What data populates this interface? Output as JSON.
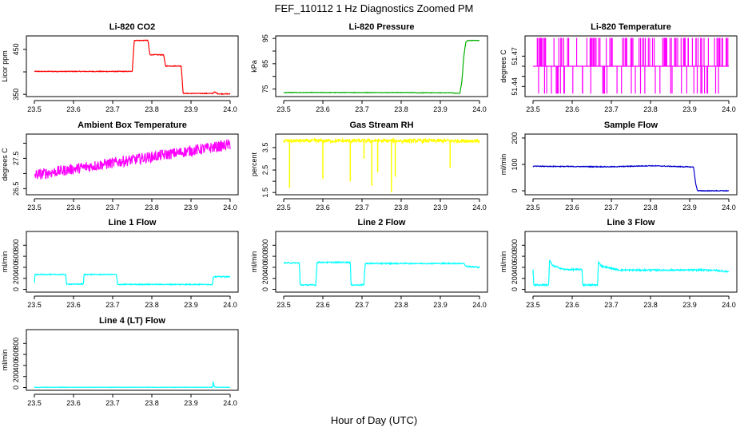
{
  "figure": {
    "title": "FEF_110112  1 Hz Diagnostics Zoomed PM",
    "xlabel": "Hour of Day (UTC)"
  },
  "chart_data": [
    {
      "type": "line",
      "title": "Li-820 CO2",
      "ylabel": "Licor ppm",
      "xlim": [
        23.5,
        24.0
      ],
      "xticks": [
        "23.5",
        "23.6",
        "23.7",
        "23.8",
        "23.9",
        "24.0"
      ],
      "ylim": [
        345,
        480
      ],
      "yticks": [
        {
          "v": 350,
          "label": "350"
        },
        {
          "v": 400,
          "label": ""
        },
        {
          "v": 450,
          "label": "450"
        }
      ],
      "color": "#ff0000",
      "series": [
        {
          "x": [
            23.5,
            23.75,
            23.755,
            23.79,
            23.795,
            23.83,
            23.835,
            23.875,
            23.88,
            23.955,
            23.96,
            23.97,
            24.0
          ],
          "y": [
            401,
            401,
            470,
            470,
            438,
            438,
            413,
            413,
            352,
            352,
            355,
            351,
            351
          ]
        }
      ]
    },
    {
      "type": "line",
      "title": "Li-820 Pressure",
      "ylabel": "kPa",
      "xlim": [
        23.5,
        24.0
      ],
      "xticks": [
        "23.5",
        "23.6",
        "23.7",
        "23.8",
        "23.9",
        "24.0"
      ],
      "ylim": [
        72,
        96
      ],
      "yticks": [
        {
          "v": 75,
          "label": "75"
        },
        {
          "v": 80,
          "label": ""
        },
        {
          "v": 85,
          "label": "85"
        },
        {
          "v": 90,
          "label": ""
        },
        {
          "v": 95,
          "label": "95"
        }
      ],
      "color": "#00b000",
      "series": [
        {
          "x": [
            23.5,
            23.835,
            23.84,
            23.93,
            23.94,
            23.95,
            23.955,
            23.96,
            23.965,
            23.97,
            24.0
          ],
          "y": [
            73.6,
            73.6,
            73.5,
            73.5,
            73.3,
            73.3,
            78,
            88,
            93.5,
            94.2,
            94.2
          ]
        }
      ]
    },
    {
      "type": "line",
      "title": "Li-820 Temperature",
      "ylabel": "degrees C",
      "xlim": [
        23.5,
        24.0
      ],
      "xticks": [
        "23.5",
        "23.6",
        "23.7",
        "23.8",
        "23.9",
        "24.0"
      ],
      "ylim": [
        51.43,
        51.49
      ],
      "yticks": [
        {
          "v": 51.44,
          "label": "51.44"
        },
        {
          "v": 51.45,
          "label": ""
        },
        {
          "v": 51.46,
          "label": ""
        },
        {
          "v": 51.47,
          "label": "51.47"
        }
      ],
      "color": "#ff00ff",
      "series": [
        {
          "x": [
            23.5,
            24.0
          ],
          "y": [
            51.46,
            51.46
          ]
        }
      ]
    },
    {
      "type": "line",
      "title": "Ambient Box Temperature",
      "ylabel": "degrees C",
      "xlim": [
        23.5,
        24.0
      ],
      "xticks": [
        "23.5",
        "23.6",
        "23.7",
        "23.8",
        "23.9",
        "24.0"
      ],
      "ylim": [
        26.3,
        28.3
      ],
      "yticks": [
        {
          "v": 26.5,
          "label": "26.5"
        },
        {
          "v": 27.0,
          "label": ""
        },
        {
          "v": 27.5,
          "label": "27.5"
        },
        {
          "v": 28.0,
          "label": ""
        }
      ],
      "color": "#ff00ff",
      "series": [
        {
          "x": [
            23.5,
            23.6,
            23.7,
            23.8,
            23.9,
            24.0
          ],
          "y": [
            26.95,
            27.15,
            27.35,
            27.55,
            27.75,
            27.95
          ]
        }
      ]
    },
    {
      "type": "line",
      "title": "Gas Stream RH",
      "ylabel": "percent",
      "xlim": [
        23.5,
        24.0
      ],
      "xticks": [
        "23.5",
        "23.6",
        "23.7",
        "23.8",
        "23.9",
        "24.0"
      ],
      "ylim": [
        1.4,
        4.1
      ],
      "yticks": [
        {
          "v": 1.5,
          "label": "1.5"
        },
        {
          "v": 2.0,
          "label": ""
        },
        {
          "v": 2.5,
          "label": "2.5"
        },
        {
          "v": 3.0,
          "label": ""
        },
        {
          "v": 3.5,
          "label": "3.5"
        }
      ],
      "color": "#ffff00",
      "series": [
        {
          "x": [
            23.5,
            24.0
          ],
          "y": [
            3.8,
            3.8
          ]
        }
      ],
      "spikes": [
        {
          "x": 23.515,
          "y": 1.7
        },
        {
          "x": 23.6,
          "y": 2.1
        },
        {
          "x": 23.67,
          "y": 2.0
        },
        {
          "x": 23.705,
          "y": 3.0
        },
        {
          "x": 23.725,
          "y": 1.8
        },
        {
          "x": 23.74,
          "y": 2.4
        },
        {
          "x": 23.775,
          "y": 1.5
        },
        {
          "x": 23.785,
          "y": 2.2
        },
        {
          "x": 23.925,
          "y": 2.6
        }
      ]
    },
    {
      "type": "line",
      "title": "Sample Flow",
      "ylabel": "ml/min",
      "xlim": [
        23.5,
        24.0
      ],
      "xticks": [
        "23.5",
        "23.6",
        "23.7",
        "23.8",
        "23.9",
        "24.0"
      ],
      "ylim": [
        -15,
        215
      ],
      "yticks": [
        {
          "v": 0,
          "label": "0"
        },
        {
          "v": 100,
          "label": "100"
        },
        {
          "v": 200,
          "label": "200"
        }
      ],
      "color": "#0000cc",
      "series": [
        {
          "x": [
            23.5,
            23.6,
            23.7,
            23.8,
            23.91,
            23.915,
            23.92,
            24.0
          ],
          "y": [
            93,
            92,
            91,
            95,
            90,
            30,
            0,
            0
          ]
        }
      ]
    },
    {
      "type": "line",
      "title": "Line 1 Flow",
      "ylabel": "ml/min",
      "xlim": [
        23.5,
        24.0
      ],
      "xticks": [
        "23.5",
        "23.6",
        "23.7",
        "23.8",
        "23.9",
        "24.0"
      ],
      "ylim": [
        -50,
        1050
      ],
      "yticks": [
        {
          "v": 0,
          "label": "0"
        },
        {
          "v": 200,
          "label": "200"
        },
        {
          "v": 400,
          "label": "400"
        },
        {
          "v": 600,
          "label": "600"
        },
        {
          "v": 800,
          "label": "800"
        }
      ],
      "color": "#00ffff",
      "series": [
        {
          "x": [
            23.5,
            23.502,
            23.58,
            23.582,
            23.625,
            23.627,
            23.71,
            23.712,
            23.955,
            23.957,
            24.0
          ],
          "y": [
            120,
            270,
            270,
            95,
            95,
            270,
            270,
            90,
            90,
            230,
            230
          ]
        }
      ]
    },
    {
      "type": "line",
      "title": "Line 2 Flow",
      "ylabel": "ml/min",
      "xlim": [
        23.5,
        24.0
      ],
      "xticks": [
        "23.5",
        "23.6",
        "23.7",
        "23.8",
        "23.9",
        "24.0"
      ],
      "ylim": [
        -50,
        1050
      ],
      "yticks": [
        {
          "v": 0,
          "label": "0"
        },
        {
          "v": 200,
          "label": "200"
        },
        {
          "v": 400,
          "label": "400"
        },
        {
          "v": 600,
          "label": "600"
        },
        {
          "v": 800,
          "label": "800"
        }
      ],
      "color": "#00ffff",
      "series": [
        {
          "x": [
            23.5,
            23.54,
            23.542,
            23.582,
            23.585,
            23.67,
            23.672,
            23.705,
            23.708,
            23.96,
            23.965,
            24.0
          ],
          "y": [
            480,
            480,
            80,
            80,
            490,
            490,
            80,
            80,
            470,
            470,
            420,
            400
          ]
        }
      ]
    },
    {
      "type": "line",
      "title": "Line 3 Flow",
      "ylabel": "ml/min",
      "xlim": [
        23.5,
        24.0
      ],
      "xticks": [
        "23.5",
        "23.6",
        "23.7",
        "23.8",
        "23.9",
        "24.0"
      ],
      "ylim": [
        -50,
        1050
      ],
      "yticks": [
        {
          "v": 0,
          "label": "0"
        },
        {
          "v": 200,
          "label": "200"
        },
        {
          "v": 400,
          "label": "400"
        },
        {
          "v": 600,
          "label": "600"
        },
        {
          "v": 800,
          "label": "800"
        }
      ],
      "color": "#00ffff",
      "series": [
        {
          "x": [
            23.5,
            23.502,
            23.54,
            23.542,
            23.55,
            23.58,
            23.625,
            23.627,
            23.665,
            23.667,
            23.675,
            23.72,
            23.96,
            24.0
          ],
          "y": [
            360,
            80,
            80,
            530,
            430,
            360,
            360,
            80,
            80,
            500,
            420,
            350,
            350,
            320
          ]
        }
      ]
    },
    {
      "type": "line",
      "title": "Line 4 (LT) Flow",
      "ylabel": "ml/min",
      "xlim": [
        23.5,
        24.0
      ],
      "xticks": [
        "23.5",
        "23.6",
        "23.7",
        "23.8",
        "23.9",
        "24.0"
      ],
      "ylim": [
        -50,
        1050
      ],
      "yticks": [
        {
          "v": 0,
          "label": "0"
        },
        {
          "v": 200,
          "label": "200"
        },
        {
          "v": 400,
          "label": "400"
        },
        {
          "v": 600,
          "label": "600"
        },
        {
          "v": 800,
          "label": "800"
        }
      ],
      "color": "#00ffff",
      "series": [
        {
          "x": [
            23.5,
            23.955,
            23.957,
            23.959,
            23.962,
            24.0
          ],
          "y": [
            5,
            5,
            110,
            20,
            5,
            5
          ]
        }
      ]
    }
  ]
}
